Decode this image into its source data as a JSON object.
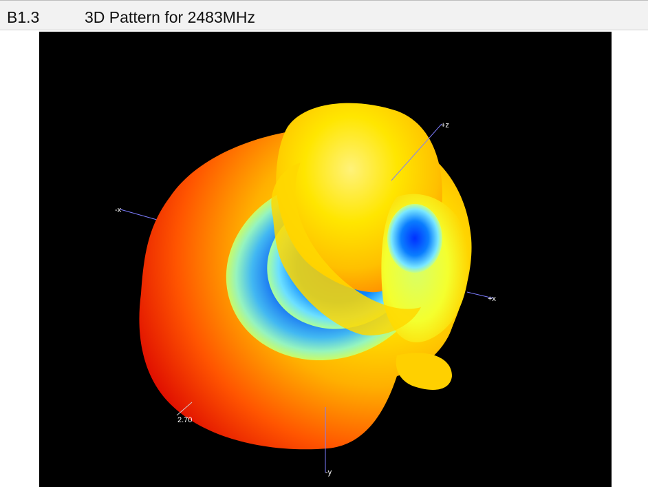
{
  "header": {
    "section_number": "B1.3",
    "section_title": "3D Pattern for 2483MHz"
  },
  "figure": {
    "axis_labels": {
      "plus_z": "+z",
      "minus_x": "-x",
      "plus_x": "+x",
      "minus_y": "-y"
    },
    "scale_value": "2.70",
    "colors": {
      "background": "#000000",
      "high_gain": "#ff2a00",
      "mid_gain": "#ffee00",
      "low_gain": "#0090ff",
      "axis_line": "#7d7dff"
    }
  }
}
